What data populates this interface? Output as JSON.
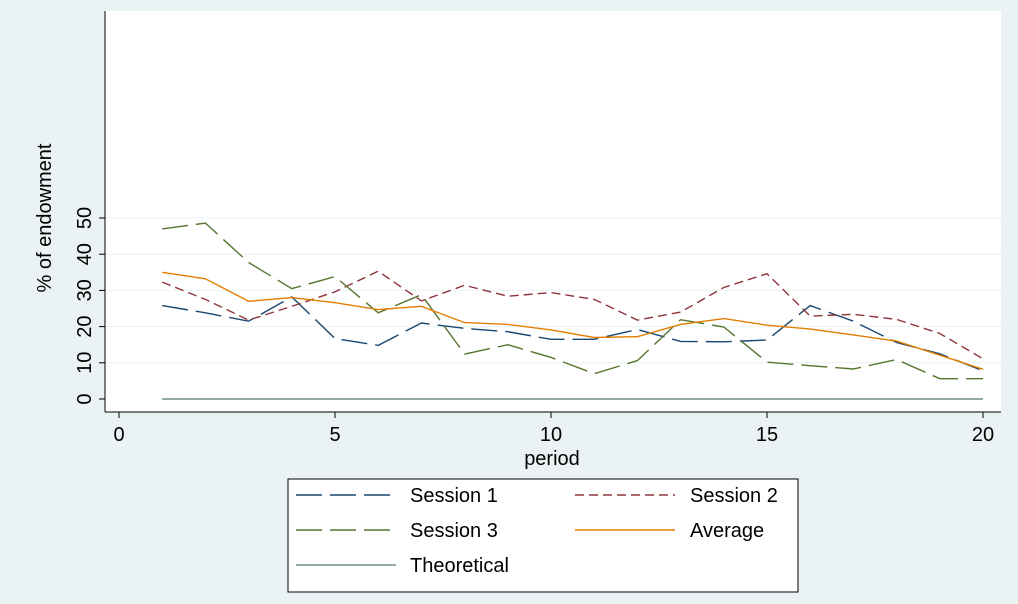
{
  "chart_data": {
    "type": "line",
    "title": "",
    "xlabel": "period",
    "ylabel": "% of endowment",
    "xlim": [
      0,
      20
    ],
    "ylim": [
      0,
      100
    ],
    "xticks": [
      0,
      5,
      10,
      15,
      20
    ],
    "yticks": [
      0,
      10,
      20,
      30,
      40,
      50
    ],
    "grid": "horizontal",
    "legend_position": "bottom",
    "x": [
      1,
      2,
      3,
      4,
      5,
      6,
      7,
      8,
      9,
      10,
      11,
      12,
      13,
      14,
      15,
      16,
      17,
      18,
      19,
      20
    ],
    "series": [
      {
        "name": "Session 1",
        "color": "#1a476f",
        "dash": "long-dash",
        "values": [
          25.8,
          23.8,
          21.5,
          28.2,
          16.7,
          14.8,
          21.0,
          19.5,
          18.6,
          16.5,
          16.5,
          19.2,
          15.9,
          15.8,
          16.3,
          25.8,
          21.5,
          15.6,
          12.5,
          7.8
        ]
      },
      {
        "name": "Session 2",
        "color": "#90353b",
        "dash": "short-dash",
        "values": [
          32.3,
          27.5,
          21.8,
          25.6,
          29.6,
          35.3,
          27.1,
          31.4,
          28.4,
          29.4,
          27.5,
          21.8,
          24.0,
          30.8,
          34.6,
          22.9,
          23.4,
          22.0,
          18.1,
          11.1
        ]
      },
      {
        "name": "Session 3",
        "color": "#55752f",
        "dash": "long-dash",
        "values": [
          47.0,
          48.6,
          37.7,
          30.5,
          33.8,
          23.8,
          28.8,
          12.4,
          15.0,
          11.5,
          7.0,
          10.6,
          21.9,
          19.9,
          10.2,
          9.2,
          8.3,
          10.9,
          5.6,
          5.6
        ]
      },
      {
        "name": "Average",
        "color": "#e37e00",
        "dash": "solid",
        "values": [
          35.0,
          33.2,
          27.0,
          28.0,
          26.6,
          24.7,
          25.6,
          21.1,
          20.6,
          19.1,
          17.0,
          17.2,
          20.6,
          22.2,
          20.4,
          19.3,
          17.7,
          16.0,
          12.1,
          8.2
        ]
      },
      {
        "name": "Theoretical",
        "color": "#6e8e84",
        "dash": "solid",
        "values": [
          0,
          0,
          0,
          0,
          0,
          0,
          0,
          0,
          0,
          0,
          0,
          0,
          0,
          0,
          0,
          0,
          0,
          0,
          0,
          0
        ]
      }
    ]
  }
}
